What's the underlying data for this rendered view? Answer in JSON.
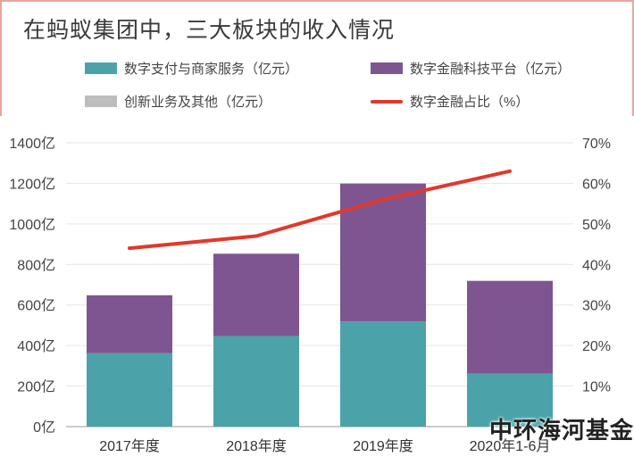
{
  "title": "在蚂蚁集团中，三大板块的收入情况",
  "watermark": "中环海河基金",
  "legend": [
    {
      "label": "数字支付与商家服务（亿元）",
      "color": "#4ba3a9",
      "kind": "bar"
    },
    {
      "label": "数字金融科技平台（亿元）",
      "color": "#7f5591",
      "kind": "bar"
    },
    {
      "label": "创新业务及其他（亿元）",
      "color": "#bdbdbd",
      "kind": "bar"
    },
    {
      "label": "数字金融占比（%）",
      "color": "#e0392c",
      "kind": "line"
    }
  ],
  "chart_data": {
    "type": "bar",
    "stacked": true,
    "title": "在蚂蚁集团中，三大板块的收入情况",
    "categories": [
      "2017年度",
      "2018年度",
      "2019年度",
      "2020年1-6月"
    ],
    "series": [
      {
        "name": "数字支付与商家服务（亿元）",
        "color": "#4ba3a9",
        "values": [
          362,
          447,
          519,
          261
        ]
      },
      {
        "name": "数字金融科技平台（亿元）",
        "color": "#7f5591",
        "values": [
          286,
          406,
          680,
          458
        ]
      },
      {
        "name": "创新业务及其他（亿元）",
        "color": "#bdbdbd",
        "values": [
          0,
          0,
          0,
          0
        ]
      }
    ],
    "line_series": {
      "name": "数字金融占比（%）",
      "color": "#e0392c",
      "values": [
        44,
        47,
        56,
        63
      ]
    },
    "y_left": {
      "ticks": [
        "0亿",
        "200亿",
        "400亿",
        "600亿",
        "800亿",
        "1000亿",
        "1200亿",
        "1400亿"
      ],
      "range": [
        0,
        1400
      ]
    },
    "y_right": {
      "ticks": [
        "10%",
        "20%",
        "30%",
        "40%",
        "50%",
        "60%",
        "70%"
      ],
      "range": [
        0,
        70
      ]
    },
    "grid": true
  }
}
